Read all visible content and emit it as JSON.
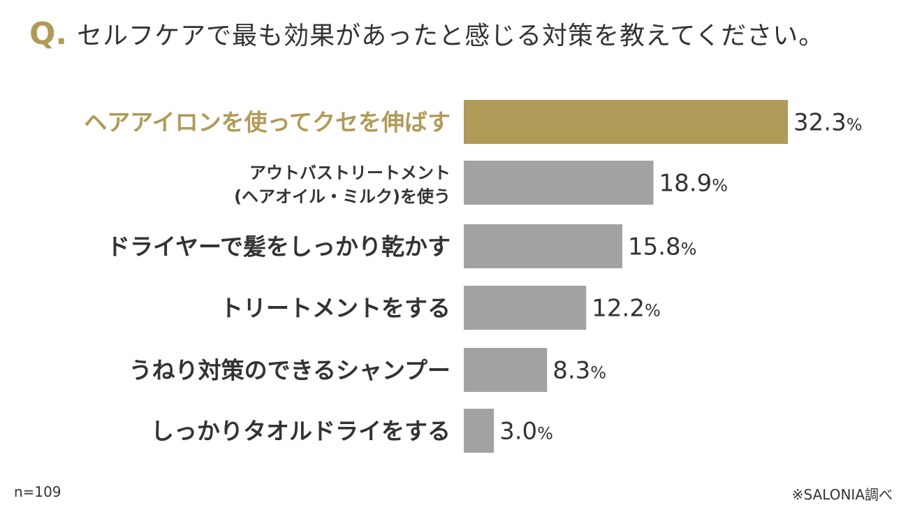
{
  "question": {
    "mark": "Q",
    "dot": ".",
    "text": "セルフケアで最も効果があったと感じる対策を教えてください。"
  },
  "chart_data": {
    "type": "bar",
    "orientation": "horizontal",
    "categories": [
      [
        "ヘアアイロンを使ってクセを伸ばす"
      ],
      [
        "アウトバストリートメント",
        "(ヘアオイル・ミルク)を使う"
      ],
      [
        "ドライヤーで髪をしっかり乾かす"
      ],
      [
        "トリートメントをする"
      ],
      [
        "うねり対策のできるシャンプー"
      ],
      [
        "しっかりタオルドライをする"
      ]
    ],
    "values": [
      32.3,
      18.9,
      15.8,
      12.2,
      8.3,
      3.0
    ],
    "value_labels": [
      "32.3",
      "18.9",
      "15.8",
      "12.2",
      "8.3",
      "3.0"
    ],
    "unit": "%",
    "highlight_index": 0,
    "xlim": [
      0,
      32.3
    ],
    "grid": false,
    "colors": {
      "highlight": "#b09a58",
      "default": "#a2a2a2"
    }
  },
  "footer": {
    "sample": "n=109",
    "source": "※SALONIA調べ"
  }
}
